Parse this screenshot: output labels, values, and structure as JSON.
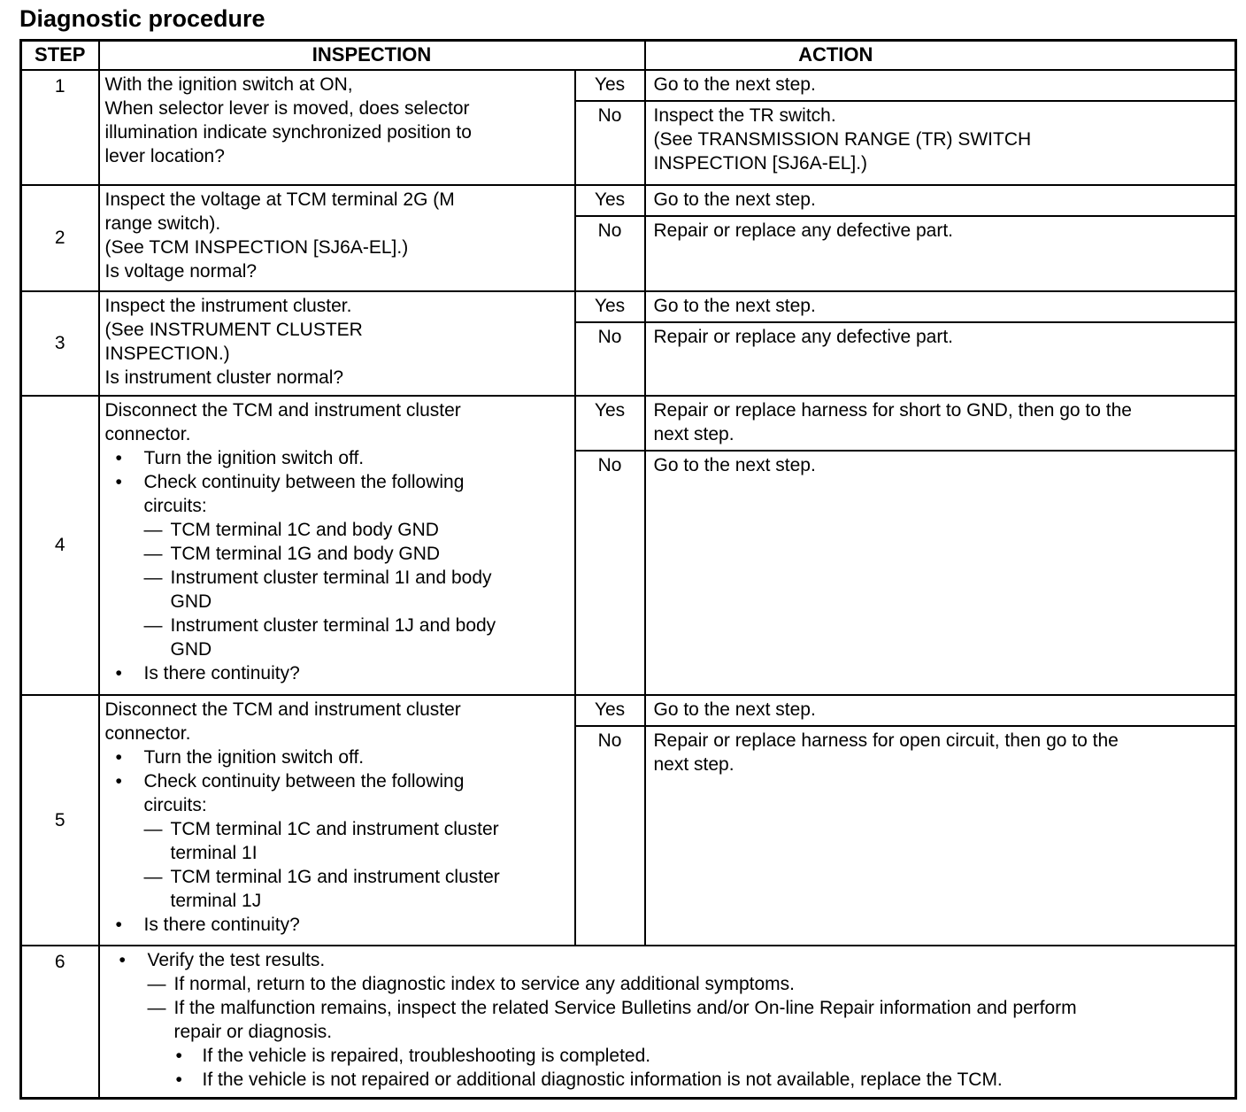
{
  "title": "Diagnostic procedure",
  "headers": {
    "step": "STEP",
    "inspection": "INSPECTION",
    "action": "ACTION"
  },
  "rows": [
    {
      "step": "1",
      "step_valign": "top",
      "inspection": [
        {
          "s": "p",
          "m": "",
          "t": "With the ignition switch at ON,\nWhen selector lever is moved, does selector\nillumination indicate synchronized position to\nlever location?"
        }
      ],
      "results": [
        {
          "answer": "Yes",
          "action": "Go to the next step."
        },
        {
          "answer": "No",
          "action": "Inspect the TR switch.\n(See TRANSMISSION RANGE (TR) SWITCH\nINSPECTION [SJ6A-EL].)"
        }
      ]
    },
    {
      "step": "2",
      "step_valign": "middle",
      "inspection": [
        {
          "s": "p",
          "m": "",
          "t": "Inspect the voltage at TCM terminal 2G (M\nrange switch).\n(See TCM INSPECTION [SJ6A-EL].)\nIs voltage normal?"
        }
      ],
      "results": [
        {
          "answer": "Yes",
          "action": "Go to the next step."
        },
        {
          "answer": "No",
          "action": "Repair or replace any defective part."
        }
      ]
    },
    {
      "step": "3",
      "step_valign": "middle",
      "inspection": [
        {
          "s": "p",
          "m": "",
          "t": "Inspect the instrument cluster.\n(See INSTRUMENT CLUSTER\nINSPECTION.)\nIs instrument cluster normal?"
        }
      ],
      "results": [
        {
          "answer": "Yes",
          "action": "Go to the next step."
        },
        {
          "answer": "No",
          "action": "Repair or replace any defective part."
        }
      ]
    },
    {
      "step": "4",
      "step_valign": "middle",
      "inspection": [
        {
          "s": "p",
          "m": "",
          "t": "Disconnect the TCM and instrument cluster\nconnector."
        },
        {
          "s": "b1",
          "m": "•",
          "t": "Turn the ignition switch off."
        },
        {
          "s": "b1",
          "m": "•",
          "t": "Check continuity between the following\ncircuits:"
        },
        {
          "s": "d",
          "m": "—",
          "t": "TCM terminal 1C and body GND"
        },
        {
          "s": "d",
          "m": "—",
          "t": "TCM terminal 1G and body GND"
        },
        {
          "s": "d",
          "m": "—",
          "t": "Instrument cluster terminal 1I and body\nGND"
        },
        {
          "s": "d",
          "m": "—",
          "t": "Instrument cluster terminal 1J and body\nGND"
        },
        {
          "s": "b1",
          "m": "•",
          "t": "Is there continuity?"
        }
      ],
      "results": [
        {
          "answer": "Yes",
          "action": "Repair or replace harness for short to GND, then go to the\nnext step."
        },
        {
          "answer": "No",
          "action": "Go to the next step."
        }
      ]
    },
    {
      "step": "5",
      "step_valign": "middle",
      "inspection": [
        {
          "s": "p",
          "m": "",
          "t": "Disconnect the TCM and instrument cluster\nconnector."
        },
        {
          "s": "b1",
          "m": "•",
          "t": "Turn the ignition switch off."
        },
        {
          "s": "b1",
          "m": "•",
          "t": "Check continuity between the following\ncircuits:"
        },
        {
          "s": "d",
          "m": "—",
          "t": "TCM terminal 1C and instrument cluster\nterminal 1I"
        },
        {
          "s": "d",
          "m": "—",
          "t": "TCM terminal 1G and instrument cluster\nterminal 1J"
        },
        {
          "s": "b1",
          "m": "•",
          "t": "Is there continuity?"
        }
      ],
      "results": [
        {
          "answer": "Yes",
          "action": "Go to the next step."
        },
        {
          "answer": "No",
          "action": "Repair or replace harness for open circuit, then go to the\nnext step."
        }
      ]
    },
    {
      "step": "6",
      "step_valign": "top",
      "full": [
        {
          "s": "b1",
          "m": "•",
          "t": "Verify the test results."
        },
        {
          "s": "d",
          "m": "—",
          "t": "If normal, return to the diagnostic index to service any additional symptoms."
        },
        {
          "s": "d",
          "m": "—",
          "t": "If the malfunction remains, inspect the related Service Bulletins and/or On-line Repair information and perform\nrepair or diagnosis."
        },
        {
          "s": "b2",
          "m": "•",
          "t": "If the vehicle is repaired, troubleshooting is completed."
        },
        {
          "s": "b2",
          "m": "•",
          "t": "If the vehicle is not repaired or additional diagnostic information is not available, replace the TCM."
        }
      ]
    }
  ]
}
